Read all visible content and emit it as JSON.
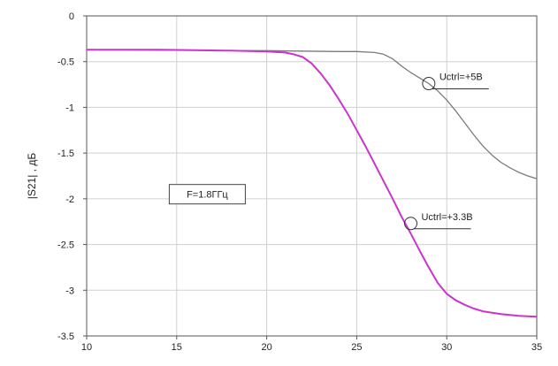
{
  "chart_data": {
    "type": "line",
    "title": "",
    "xlabel": "",
    "ylabel": "|S21| , дБ",
    "xlim": [
      10,
      35
    ],
    "ylim": [
      -3.5,
      0
    ],
    "x_ticks": [
      "10",
      "15",
      "20",
      "25",
      "30",
      "35"
    ],
    "y_ticks": [
      "0",
      "-0.5",
      "-1",
      "-1.5",
      "-2",
      "-2.5",
      "-3",
      "-3.5"
    ],
    "grid": true,
    "legend": "none",
    "series": [
      {
        "name": "Uctrl=+5В",
        "color": "#7a7a7a",
        "x": [
          10,
          12,
          14,
          16,
          18,
          20,
          22,
          24,
          25,
          26,
          26.5,
          27,
          27.5,
          28,
          28.5,
          29,
          29.5,
          30,
          30.5,
          31,
          31.5,
          32,
          32.5,
          33,
          33.5,
          34,
          34.5,
          35
        ],
        "y": [
          -0.37,
          -0.37,
          -0.375,
          -0.375,
          -0.38,
          -0.38,
          -0.385,
          -0.39,
          -0.39,
          -0.4,
          -0.42,
          -0.47,
          -0.55,
          -0.62,
          -0.68,
          -0.74,
          -0.82,
          -0.92,
          -1.04,
          -1.17,
          -1.3,
          -1.42,
          -1.52,
          -1.6,
          -1.66,
          -1.71,
          -1.75,
          -1.78
        ]
      },
      {
        "name": "Uctrl=+3.3В",
        "color": "#cc33cc",
        "x": [
          10,
          12,
          14,
          16,
          18,
          20,
          21,
          21.5,
          22,
          22.5,
          23,
          23.5,
          24,
          24.5,
          25,
          25.5,
          26,
          26.5,
          27,
          27.5,
          28,
          28.5,
          29,
          29.5,
          30,
          30.5,
          31,
          31.5,
          32,
          33,
          34,
          35
        ],
        "y": [
          -0.37,
          -0.37,
          -0.37,
          -0.375,
          -0.38,
          -0.39,
          -0.4,
          -0.42,
          -0.45,
          -0.52,
          -0.63,
          -0.76,
          -0.91,
          -1.07,
          -1.25,
          -1.43,
          -1.62,
          -1.81,
          -2.0,
          -2.2,
          -2.38,
          -2.57,
          -2.75,
          -2.92,
          -3.04,
          -3.11,
          -3.16,
          -3.2,
          -3.23,
          -3.26,
          -3.28,
          -3.29
        ]
      }
    ],
    "annotations": [
      {
        "text": "Uctrl=+5В",
        "series": 0,
        "x": 29,
        "y": -0.74
      },
      {
        "text": "Uctrl=+3.3В",
        "series": 1,
        "x": 28,
        "y": -2.27
      },
      {
        "text": "F=1.8ГГц",
        "boxed": true,
        "x": 16.7,
        "y": -1.95
      }
    ]
  }
}
